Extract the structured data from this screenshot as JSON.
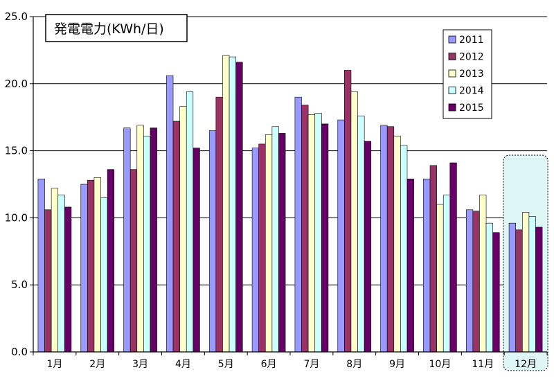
{
  "chart_data": {
    "type": "bar",
    "title": "発電電力(KWh/日)",
    "xlabel": "",
    "ylabel": "",
    "categories": [
      "1月",
      "2月",
      "3月",
      "4月",
      "5月",
      "6月",
      "7月",
      "8月",
      "9月",
      "10月",
      "11月",
      "12月"
    ],
    "ylim": [
      0,
      25
    ],
    "yticks": [
      "0.0",
      "5.0",
      "10.0",
      "15.0",
      "20.0",
      "25.0"
    ],
    "grid": true,
    "legend_position": "top-right",
    "highlight_category": "12月",
    "series": [
      {
        "name": "2011",
        "color": "#9999ff",
        "values": [
          12.9,
          12.5,
          16.7,
          20.6,
          16.5,
          15.2,
          19.0,
          17.3,
          16.9,
          12.9,
          10.6,
          9.6
        ]
      },
      {
        "name": "2012",
        "color": "#993366",
        "values": [
          10.6,
          12.8,
          13.6,
          17.2,
          19.0,
          15.5,
          18.4,
          21.0,
          16.8,
          13.9,
          10.5,
          9.1
        ]
      },
      {
        "name": "2013",
        "color": "#ffffcc",
        "values": [
          12.2,
          13.0,
          16.9,
          18.3,
          22.1,
          16.2,
          17.7,
          19.4,
          16.1,
          11.0,
          11.7,
          10.4
        ]
      },
      {
        "name": "2014",
        "color": "#ccffff",
        "values": [
          11.7,
          11.5,
          16.1,
          19.4,
          22.0,
          16.8,
          17.8,
          17.6,
          15.4,
          11.7,
          9.6,
          10.1
        ]
      },
      {
        "name": "2015",
        "color": "#660066",
        "values": [
          10.8,
          13.6,
          16.7,
          15.2,
          21.6,
          16.3,
          17.0,
          15.7,
          12.9,
          14.1,
          8.9,
          9.3
        ]
      }
    ]
  }
}
